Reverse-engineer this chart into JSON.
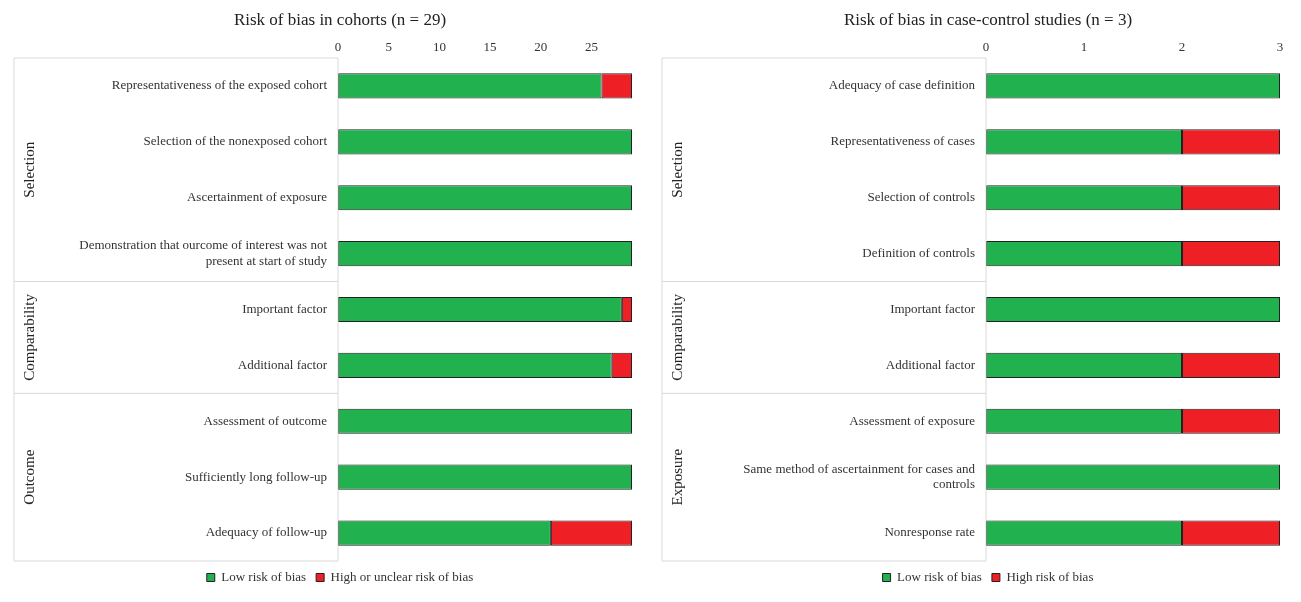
{
  "chart_data": [
    {
      "type": "bar",
      "title": "Risk of bias in cohorts (n = 29)",
      "orientation": "horizontal",
      "stacked": true,
      "legend": "bottom",
      "categories": [
        "Representativeness of the exposed cohort",
        "Selection of the nonexposed cohort",
        "Ascertainment of exposure",
        "Demonstration that ourcome of interest was not present at start of study",
        "Important factor",
        "Additional factor",
        "Assessment of outcome",
        "Sufficiently long follow-up",
        "Adequacy of follow-up"
      ],
      "series": [
        {
          "name": "Low risk of bias",
          "color": "#21b14f",
          "values": [
            26,
            29,
            29,
            29,
            28,
            27,
            29,
            29,
            21
          ]
        },
        {
          "name": "High or unclear risk of bias",
          "color": "#ee1f25",
          "values": [
            3,
            0,
            0,
            0,
            1,
            2,
            0,
            0,
            8
          ]
        }
      ],
      "xlim": [
        0,
        29
      ],
      "xticks": [
        0,
        5,
        10,
        15,
        20,
        25
      ],
      "annotations": [
        "Selection",
        "Comparability",
        "Outcome"
      ]
    },
    {
      "type": "bar",
      "title": "Risk of bias in case-control studies (n = 3)",
      "orientation": "horizontal",
      "stacked": true,
      "legend": "bottom",
      "categories": [
        "Adequacy of case definition",
        "Representativeness of cases",
        "Selection of controls",
        "Definition of controls",
        "Important factor",
        "Additional factor",
        "Assessment of exposure",
        "Same method of ascertainment for cases and controls",
        "Nonresponse rate"
      ],
      "series": [
        {
          "name": "Low risk of bias",
          "color": "#21b14f",
          "values": [
            3,
            2,
            2,
            2,
            3,
            2,
            2,
            3,
            2
          ]
        },
        {
          "name": "High risk of bias",
          "color": "#ee1f25",
          "values": [
            0,
            1,
            1,
            1,
            0,
            1,
            1,
            0,
            1
          ]
        }
      ],
      "xlim": [
        0,
        3
      ],
      "xticks": [
        0,
        1,
        2,
        3
      ],
      "annotations": [
        "Selection",
        "Comparability",
        "Exposure"
      ]
    }
  ]
}
